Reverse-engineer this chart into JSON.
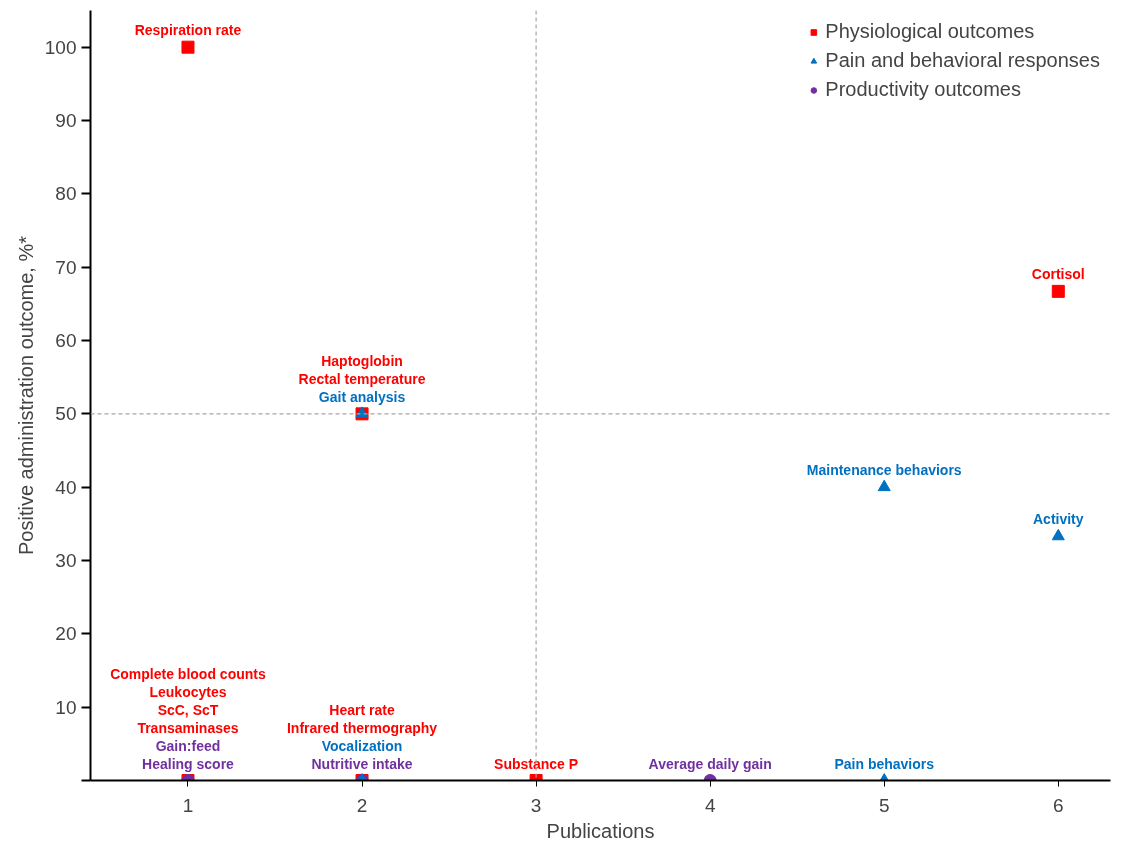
{
  "chart_data": {
    "type": "scatter",
    "xlabel": "Publications",
    "ylabel": "Positive administration outcome, %*",
    "xlim": [
      0.44,
      6.3
    ],
    "ylim": [
      0,
      105
    ],
    "xticks": [
      1,
      2,
      3,
      4,
      5,
      6
    ],
    "yticks": [
      {
        "value": 0,
        "label": null
      },
      10,
      20,
      30,
      40,
      50,
      60,
      70,
      80,
      90,
      100
    ],
    "grid": false,
    "legend": "top right",
    "ref_lines": [
      {
        "axis": "x",
        "value": 3,
        "color": "#a6a6a6",
        "line_style": "dashed"
      },
      {
        "axis": "y",
        "value": 50,
        "color": "#a6a6a6",
        "line_style": "dashed"
      }
    ],
    "series": [
      {
        "name": "Physiological outcomes",
        "color": "#ff0000",
        "marker": "square",
        "x": [
          1,
          2,
          1,
          2,
          3,
          6
        ],
        "values": [
          100,
          50,
          0,
          0,
          0,
          66.7
        ],
        "value_labels": [
          "Respiration rate",
          "Haptoglobin\nRectal temperature",
          "Complete blood counts\nLeukocytes\nScC, ScT\nTransaminases",
          "Heart rate\nInfrared thermography",
          "Substance P",
          "Cortisol"
        ]
      },
      {
        "name": "Pain and behavioral responses",
        "color": "#0070c0",
        "marker": "triangle",
        "x": [
          2,
          2,
          5,
          6,
          5
        ],
        "values": [
          50,
          0,
          40,
          33.3,
          0
        ],
        "value_labels": [
          "Gait analysis",
          "Vocalization",
          "Maintenance behaviors",
          "Activity",
          "Pain behaviors"
        ]
      },
      {
        "name": "Productivity outcomes",
        "color": "#7030a0",
        "marker": "circle",
        "x": [
          1,
          2,
          4
        ],
        "values": [
          0,
          0,
          0
        ],
        "value_labels": [
          "Gain:feed\nHealing score",
          "Nutritive intake",
          "Average daily gain"
        ]
      }
    ]
  }
}
